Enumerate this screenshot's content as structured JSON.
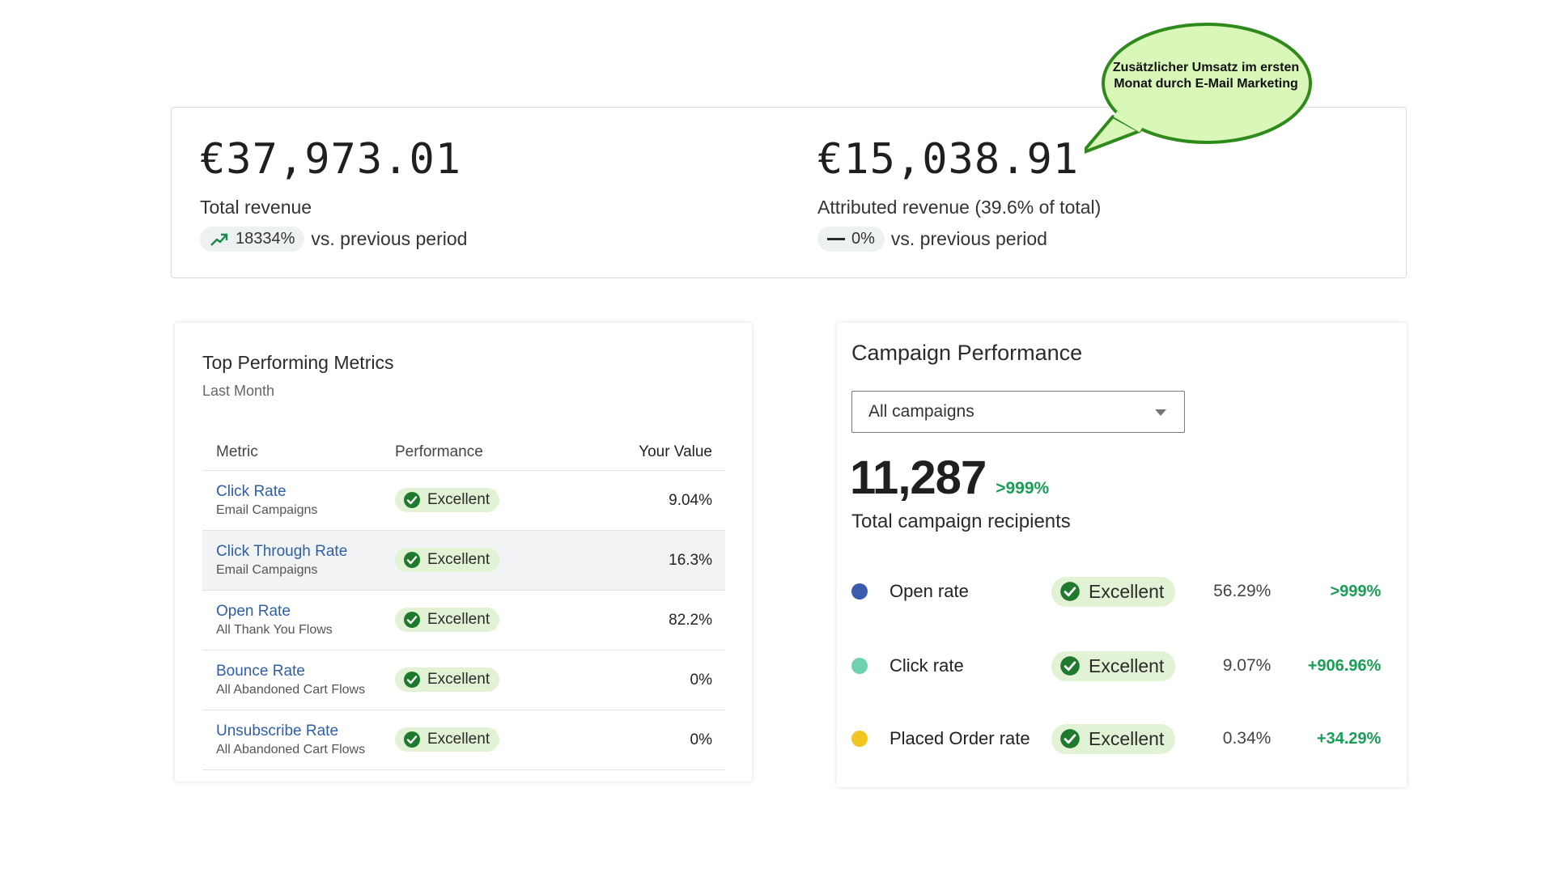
{
  "revenue": {
    "total": {
      "amount": "€37,973.01",
      "label": "Total revenue",
      "change": "18334%",
      "comparison": "vs. previous period",
      "trend_icon": "trend-up-icon"
    },
    "attributed": {
      "amount": "€15,038.91",
      "label": "Attributed revenue (39.6% of total)",
      "change": "0%",
      "comparison": "vs. previous period",
      "trend_icon": "dash-icon"
    }
  },
  "callout": {
    "text": "Zusätzlicher Umsatz im ersten Monat durch E-Mail Marketing",
    "fill": "#d8f7b8",
    "stroke": "#2f8a1c"
  },
  "metrics": {
    "title": "Top Performing Metrics",
    "subtitle": "Last Month",
    "headers": {
      "metric": "Metric",
      "performance": "Performance",
      "value": "Your Value"
    },
    "rows": [
      {
        "name": "Click Rate",
        "source": "Email Campaigns",
        "performance": "Excellent",
        "value": "9.04%"
      },
      {
        "name": "Click Through Rate",
        "source": "Email Campaigns",
        "performance": "Excellent",
        "value": "16.3%"
      },
      {
        "name": "Open Rate",
        "source": "All Thank You Flows",
        "performance": "Excellent",
        "value": "82.2%"
      },
      {
        "name": "Bounce Rate",
        "source": "All Abandoned Cart Flows",
        "performance": "Excellent",
        "value": "0%"
      },
      {
        "name": "Unsubscribe Rate",
        "source": "All Abandoned Cart Flows",
        "performance": "Excellent",
        "value": "0%"
      }
    ]
  },
  "campaign": {
    "title": "Campaign Performance",
    "select_value": "All campaigns",
    "total_recipients": "11,287",
    "total_change": ">999%",
    "total_label": "Total campaign recipients",
    "rows": [
      {
        "name": "Open rate",
        "color": "#3a5bb0",
        "performance": "Excellent",
        "value": "56.29%",
        "change": ">999%"
      },
      {
        "name": "Click rate",
        "color": "#6fd1b1",
        "performance": "Excellent",
        "value": "9.07%",
        "change": "+906.96%"
      },
      {
        "name": "Placed Order rate",
        "color": "#f2c521",
        "performance": "Excellent",
        "value": "0.34%",
        "change": "+34.29%"
      }
    ]
  },
  "colors": {
    "positive": "#1a9e55",
    "link": "#2f5fa6",
    "badge_bg": "#e2f3d5",
    "check": "#1f7a2e"
  }
}
